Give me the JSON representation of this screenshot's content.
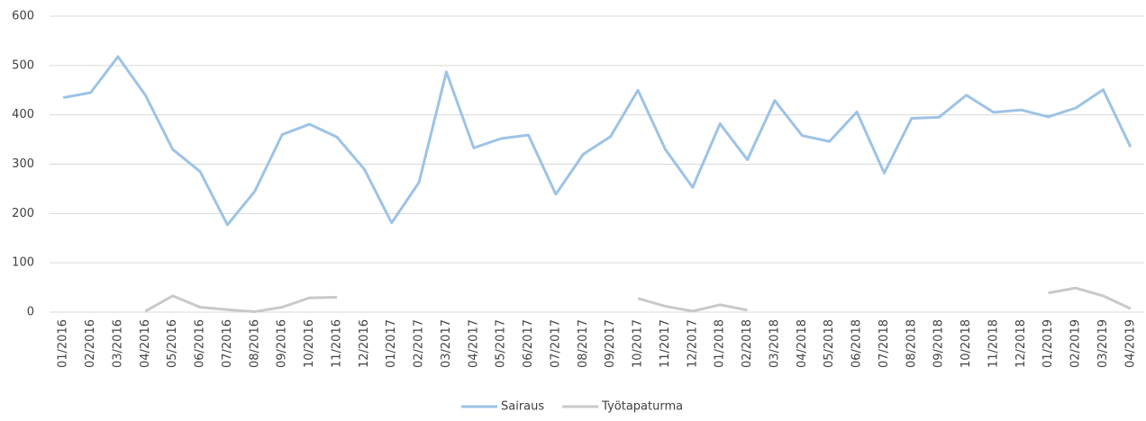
{
  "chart_data": {
    "type": "line",
    "categories": [
      "01/2016",
      "02/2016",
      "03/2016",
      "04/2016",
      "05/2016",
      "06/2016",
      "07/2016",
      "08/2016",
      "09/2016",
      "10/2016",
      "11/2016",
      "12/2016",
      "01/2017",
      "02/2017",
      "03/2017",
      "04/2017",
      "05/2017",
      "06/2017",
      "07/2017",
      "08/2017",
      "09/2017",
      "10/2017",
      "11/2017",
      "12/2017",
      "01/2018",
      "02/2018",
      "03/2018",
      "04/2018",
      "05/2018",
      "06/2018",
      "07/2018",
      "08/2018",
      "09/2018",
      "10/2018",
      "11/2018",
      "12/2018",
      "01/2019",
      "02/2019",
      "03/2019",
      "04/2019"
    ],
    "series": [
      {
        "name": "Sairaus",
        "color": "#9dc3e6",
        "values": [
          435,
          445,
          518,
          440,
          330,
          285,
          177,
          245,
          360,
          381,
          355,
          290,
          181,
          263,
          487,
          333,
          352,
          359,
          239,
          320,
          356,
          450,
          330,
          253,
          382,
          309,
          429,
          358,
          346,
          406,
          282,
          393,
          395,
          440,
          405,
          410,
          396,
          414,
          451,
          335
        ]
      },
      {
        "name": "Työtapaturma",
        "color": "#c9c9c9",
        "values": [
          null,
          null,
          null,
          2,
          33,
          10,
          5,
          1,
          10,
          29,
          30,
          null,
          null,
          null,
          null,
          null,
          null,
          null,
          null,
          null,
          null,
          28,
          12,
          2,
          15,
          4,
          null,
          null,
          null,
          null,
          null,
          null,
          null,
          null,
          null,
          null,
          39,
          49,
          33,
          7
        ]
      }
    ],
    "ylim": [
      0,
      600
    ],
    "yticks": [
      0,
      100,
      200,
      300,
      400,
      500,
      600
    ],
    "grid": true,
    "legend": "bottom"
  }
}
